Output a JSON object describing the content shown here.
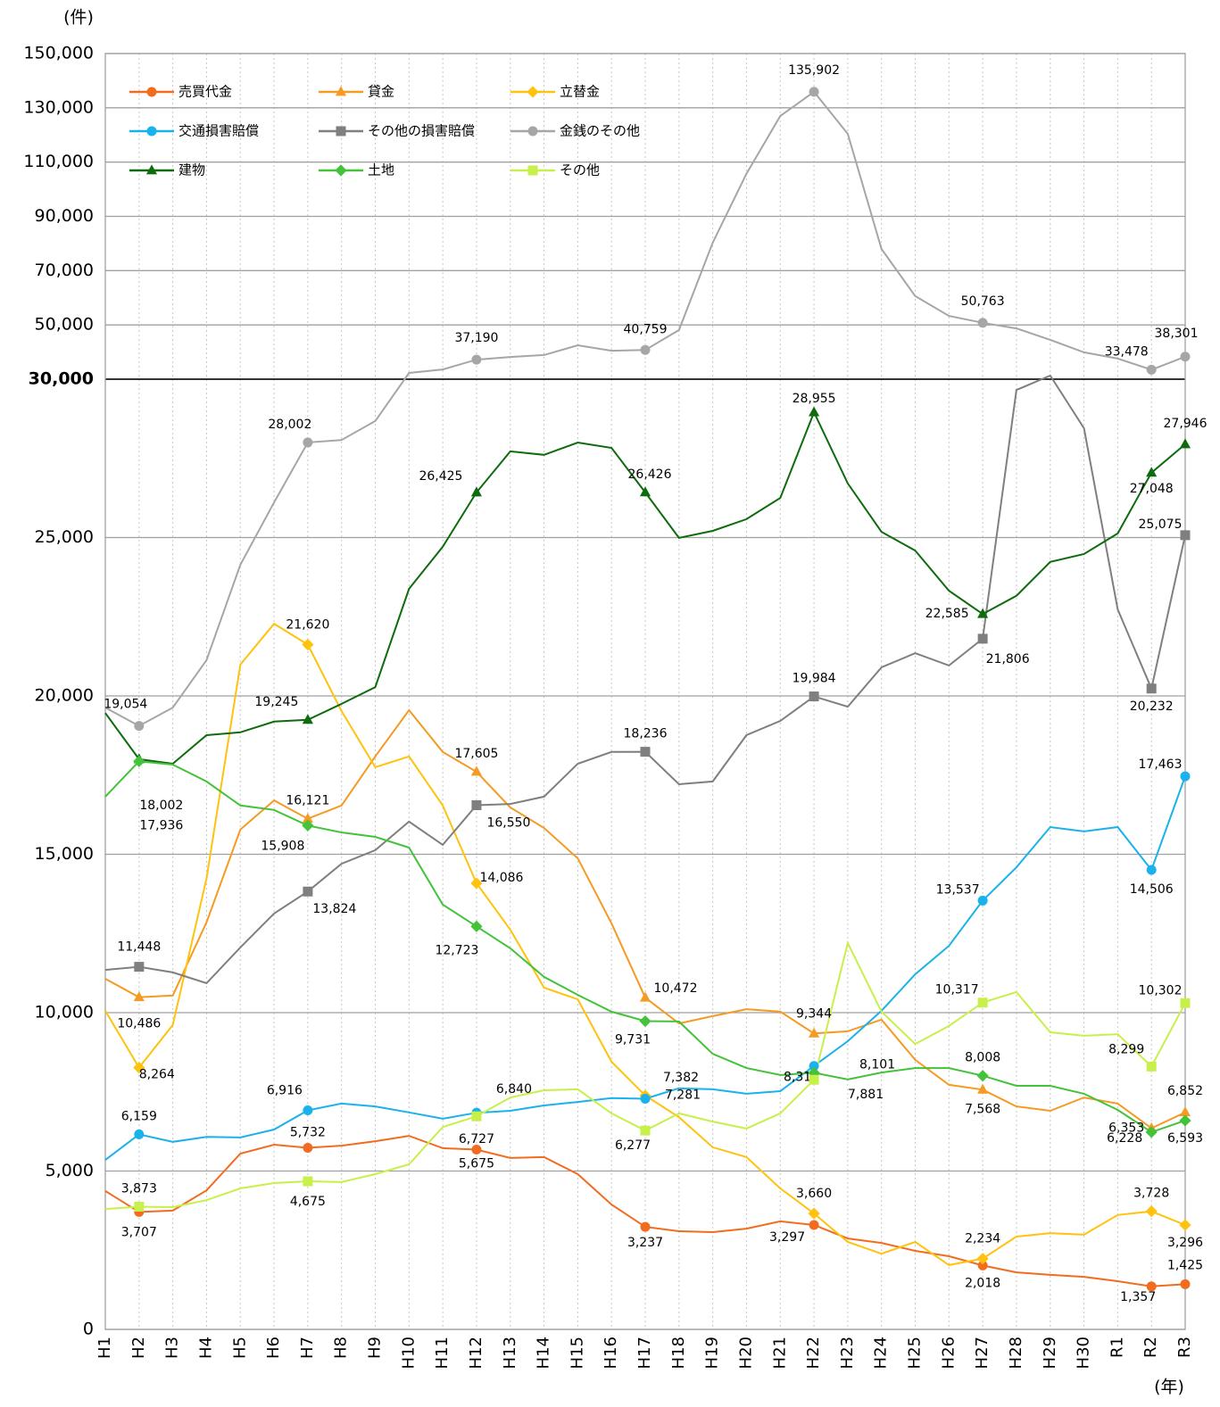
{
  "chart_data": {
    "type": "line",
    "y_label": "(件)",
    "x_label": "(年)",
    "categories": [
      "H1",
      "H2",
      "H3",
      "H4",
      "H5",
      "H6",
      "H7",
      "H8",
      "H9",
      "H10",
      "H11",
      "H12",
      "H13",
      "H14",
      "H15",
      "H16",
      "H17",
      "H18",
      "H19",
      "H20",
      "H21",
      "H22",
      "H23",
      "H24",
      "H25",
      "H26",
      "H27",
      "H28",
      "H29",
      "H30",
      "R1",
      "R2",
      "R3"
    ],
    "ylim": [
      0,
      150000
    ],
    "y_break": 30000,
    "yticks": [
      0,
      {
        "value": 5000,
        "label": "5,000"
      },
      {
        "value": 10000,
        "label": "10,000"
      },
      {
        "value": 15000,
        "label": "15,000"
      },
      {
        "value": 20000,
        "label": "20,000"
      },
      {
        "value": 25000,
        "label": "25,000"
      },
      {
        "value": 30000,
        "label": "30,000"
      },
      {
        "value": 50000,
        "label": "50,000"
      },
      {
        "value": 70000,
        "label": "70,000"
      },
      {
        "value": 90000,
        "label": "90,000"
      },
      {
        "value": 110000,
        "label": "110,000"
      },
      {
        "value": 130000,
        "label": "130,000"
      },
      {
        "value": 150000,
        "label": "150,000"
      }
    ],
    "grid": true,
    "legend": "upper left",
    "series": [
      {
        "name": "売買代金",
        "color": "#f26c1f",
        "marker": "circle",
        "values": [
          4370,
          3707,
          3750,
          4390,
          5550,
          5830,
          5732,
          5800,
          5940,
          6110,
          5720,
          5675,
          5410,
          5440,
          4900,
          3940,
          3237,
          3100,
          3070,
          3180,
          3410,
          3297,
          2870,
          2730,
          2480,
          2310,
          2018,
          1800,
          1720,
          1660,
          1520,
          1357,
          1425
        ],
        "value_labels": [
          null,
          "3,707",
          null,
          null,
          null,
          null,
          "5,732",
          null,
          null,
          null,
          null,
          "5,675",
          null,
          null,
          null,
          null,
          "3,237",
          null,
          null,
          null,
          null,
          "3,297",
          null,
          null,
          null,
          null,
          "2,018",
          null,
          null,
          null,
          null,
          "1,357",
          "1,425"
        ]
      },
      {
        "name": "貸金",
        "color": "#f59a23",
        "marker": "triangle",
        "values": [
          11070,
          10486,
          10540,
          12850,
          15780,
          16700,
          16121,
          16540,
          18090,
          19550,
          18230,
          17605,
          16480,
          15830,
          14870,
          12820,
          10472,
          9660,
          9890,
          10110,
          10030,
          9344,
          9410,
          9780,
          8510,
          7720,
          7568,
          7040,
          6900,
          7320,
          7130,
          6353,
          6852
        ],
        "value_labels": [
          null,
          "10,486",
          null,
          null,
          null,
          null,
          "16,121",
          null,
          null,
          null,
          null,
          "17,605",
          null,
          null,
          null,
          null,
          "10,472",
          null,
          null,
          null,
          null,
          "9,344",
          null,
          null,
          null,
          null,
          "7,568",
          null,
          null,
          null,
          null,
          "6,353",
          "6,852"
        ]
      },
      {
        "name": "立替金",
        "color": "#ffc20e",
        "marker": "diamond",
        "values": [
          10060,
          8264,
          9610,
          14230,
          20990,
          22280,
          21620,
          19520,
          17750,
          18090,
          16540,
          14086,
          12620,
          10790,
          10420,
          8450,
          7382,
          6700,
          5750,
          5440,
          4450,
          3660,
          2760,
          2390,
          2760,
          2030,
          2234,
          2930,
          3040,
          2990,
          3610,
          3728,
          3296
        ],
        "value_labels": [
          null,
          "8,264",
          null,
          null,
          null,
          null,
          "21,620",
          null,
          null,
          null,
          null,
          "14,086",
          null,
          null,
          null,
          null,
          "7,382",
          null,
          null,
          null,
          null,
          "3,660",
          null,
          null,
          null,
          null,
          "2,234",
          null,
          null,
          null,
          null,
          "3,728",
          "3,296"
        ]
      },
      {
        "name": "交通損害賠償",
        "color": "#1ab2ea",
        "marker": "circle",
        "values": [
          5350,
          6159,
          5920,
          6080,
          6060,
          6310,
          6916,
          7130,
          7040,
          6850,
          6650,
          6840,
          6900,
          7070,
          7180,
          7300,
          7281,
          7610,
          7580,
          7440,
          7520,
          8318,
          9100,
          10060,
          11210,
          12110,
          13537,
          14590,
          15860,
          15720,
          15860,
          14506,
          17463
        ],
        "value_labels": [
          null,
          "6,159",
          null,
          null,
          null,
          null,
          "6,916",
          null,
          null,
          null,
          null,
          "6,840",
          null,
          null,
          null,
          null,
          "7,281",
          null,
          null,
          null,
          null,
          "8,318",
          null,
          null,
          null,
          null,
          "13,537",
          null,
          null,
          null,
          null,
          "14,506",
          "17,463"
        ]
      },
      {
        "name": "その他の損害賠償",
        "color": "#7f7f7f",
        "marker": "square",
        "values": [
          11350,
          11448,
          11270,
          10930,
          12060,
          13130,
          13824,
          14700,
          15130,
          16030,
          15300,
          16550,
          16590,
          16820,
          17860,
          18230,
          18236,
          17210,
          17300,
          18760,
          19210,
          19984,
          19660,
          20900,
          21350,
          20960,
          21806,
          29660,
          31300,
          28450,
          22730,
          20232,
          25075
        ],
        "value_labels": [
          null,
          "11,448",
          null,
          null,
          null,
          null,
          "13,824",
          null,
          null,
          null,
          null,
          "16,550",
          null,
          null,
          null,
          null,
          "18,236",
          null,
          null,
          null,
          null,
          "19,984",
          null,
          null,
          null,
          null,
          "21,806",
          null,
          null,
          null,
          null,
          "20,232",
          "25,075"
        ]
      },
      {
        "name": "金銭のその他",
        "color": "#a6a6a6",
        "marker": "circle",
        "values": [
          19630,
          19054,
          19630,
          21130,
          24140,
          26110,
          28002,
          28080,
          28680,
          32300,
          33600,
          37190,
          38200,
          38900,
          42500,
          40500,
          40759,
          48100,
          80300,
          105700,
          127000,
          135902,
          120400,
          78000,
          60600,
          53300,
          50763,
          48700,
          44500,
          39900,
          37600,
          33478,
          38301
        ],
        "value_labels": [
          null,
          "19,054",
          null,
          null,
          null,
          null,
          "28,002",
          null,
          null,
          null,
          null,
          "37,190",
          null,
          null,
          null,
          null,
          "40,759",
          null,
          null,
          null,
          null,
          "135,902",
          null,
          null,
          null,
          null,
          "50,763",
          null,
          null,
          null,
          null,
          "33,478",
          "38,301"
        ]
      },
      {
        "name": "建物",
        "color": "#0e6b0e",
        "marker": "triangle",
        "values": [
          19460,
          18002,
          17860,
          18760,
          18850,
          19190,
          19245,
          19750,
          20280,
          23380,
          24710,
          26425,
          27720,
          27610,
          28000,
          27830,
          26426,
          24990,
          25210,
          25580,
          26250,
          28955,
          26710,
          25180,
          24590,
          23320,
          22585,
          23160,
          24230,
          24480,
          25130,
          27048,
          27946
        ],
        "value_labels": [
          null,
          "18,002",
          null,
          null,
          null,
          null,
          "19,245",
          null,
          null,
          null,
          null,
          "26,425",
          null,
          null,
          null,
          null,
          "26,426",
          null,
          null,
          null,
          null,
          "28,955",
          null,
          null,
          null,
          null,
          "22,585",
          null,
          null,
          null,
          null,
          "27,048",
          "27,946"
        ]
      },
      {
        "name": "土地",
        "color": "#43c23a",
        "marker": "diamond",
        "values": [
          16820,
          17936,
          17830,
          17300,
          16540,
          16400,
          15908,
          15690,
          15550,
          15210,
          13410,
          12723,
          12030,
          11130,
          10560,
          10030,
          9731,
          9720,
          8700,
          8250,
          8030,
          8101,
          7890,
          8110,
          8250,
          8250,
          8008,
          7690,
          7690,
          7440,
          6930,
          6228,
          6593
        ],
        "value_labels": [
          null,
          "17,936",
          null,
          null,
          null,
          null,
          "15,908",
          null,
          null,
          null,
          null,
          "12,723",
          null,
          null,
          null,
          null,
          "9,731",
          null,
          null,
          null,
          null,
          "8,101",
          null,
          null,
          null,
          null,
          "8,008",
          null,
          null,
          null,
          null,
          "6,228",
          "6,593"
        ]
      },
      {
        "name": "その他",
        "color": "#c8f04a",
        "marker": "square",
        "values": [
          3800,
          3873,
          3860,
          4080,
          4450,
          4620,
          4675,
          4650,
          4900,
          5210,
          6390,
          6727,
          7320,
          7550,
          7580,
          6820,
          6277,
          6820,
          6560,
          6340,
          6820,
          7881,
          12200,
          10030,
          9010,
          9580,
          10317,
          10650,
          9380,
          9270,
          9320,
          8299,
          10302
        ],
        "value_labels": [
          null,
          "3,873",
          null,
          null,
          null,
          null,
          "4,675",
          null,
          null,
          null,
          null,
          "6,727",
          null,
          null,
          null,
          null,
          "6,277",
          null,
          null,
          null,
          null,
          "7,881",
          null,
          null,
          null,
          null,
          "10,317",
          null,
          null,
          null,
          null,
          "8,299",
          "10,302"
        ]
      }
    ]
  }
}
